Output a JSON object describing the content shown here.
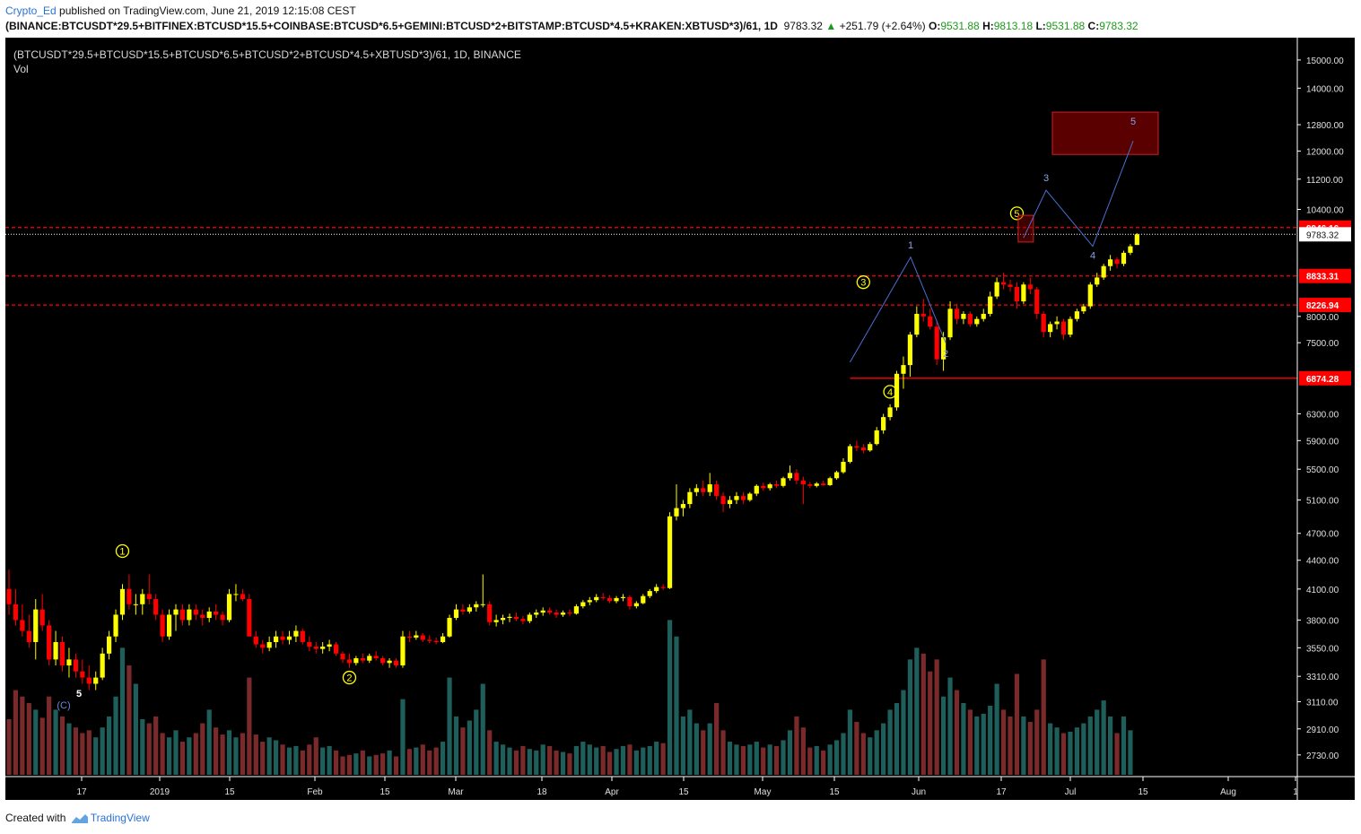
{
  "header": {
    "author": "Crypto_Ed",
    "published_text": "published on TradingView.com, June 21, 2019 12:15:08 CEST",
    "symbol": "(BINANCE:BTCUSDT*29.5+BITFINEX:BTCUSD*15.5+COINBASE:BTCUSD*6.5+GEMINI:BTCUSD*2+BITSTAMP:BTCUSD*4.5+KRAKEN:XBTUSD*3)/61, 1D",
    "last": "9783.32",
    "change": "+251.79 (+2.64%)",
    "o_label": "O:",
    "o_val": "9531.88",
    "h_label": "H:",
    "h_val": "9813.18",
    "l_label": "L:",
    "l_val": "9531.88",
    "c_label": "C:",
    "c_val": "9783.32"
  },
  "chart_legend": {
    "title": "(BTCUSDT*29.5+BTCUSD*15.5+BTCUSD*6.5+BTCUSD*2+BTCUSD*4.5+XBTUSD*3)/61, 1D, BINANCE",
    "vol": "Vol"
  },
  "footer": {
    "created_with": "Created with",
    "brand": "TradingView"
  },
  "colors": {
    "background": "#000000",
    "up": "#ffff00",
    "down": "#ff0000",
    "vol_up": "#1f5f5b",
    "vol_down": "#7a2a2a",
    "level_line": "#ff0000",
    "projection": "#4a6fd0",
    "wave_circle": "#ffff00",
    "target_box": "#5a0000"
  },
  "chart_data": {
    "type": "candlestick",
    "scale": "log",
    "ylim": [
      2600,
      15500
    ],
    "y_ticks": [
      "15000.00",
      "14000.00",
      "12800.00",
      "12000.00",
      "11200.00",
      "10400.00",
      "8000.00",
      "7500.00",
      "6300.00",
      "5900.00",
      "5500.00",
      "5100.00",
      "4700.00",
      "4400.00",
      "4100.00",
      "3800.00",
      "3550.00",
      "3310.00",
      "3110.00",
      "2910.00",
      "2730.00"
    ],
    "x_ticks": [
      "17",
      "2019",
      "15",
      "Feb",
      "15",
      "Mar",
      "18",
      "Apr",
      "15",
      "May",
      "15",
      "Jun",
      "17",
      "Jul",
      "15",
      "Aug",
      "1"
    ],
    "ohlc": [
      [
        4100,
        4300,
        3850,
        3950
      ],
      [
        3950,
        4100,
        3750,
        3800
      ],
      [
        3800,
        3950,
        3650,
        3700
      ],
      [
        3700,
        3850,
        3550,
        3600
      ],
      [
        3600,
        4000,
        3450,
        3900
      ],
      [
        3900,
        4050,
        3700,
        3750
      ],
      [
        3750,
        3800,
        3400,
        3450
      ],
      [
        3450,
        3700,
        3400,
        3600
      ],
      [
        3600,
        3650,
        3350,
        3400
      ],
      [
        3400,
        3550,
        3300,
        3450
      ],
      [
        3450,
        3500,
        3300,
        3350
      ],
      [
        3350,
        3450,
        3250,
        3300
      ],
      [
        3300,
        3400,
        3200,
        3250
      ],
      [
        3250,
        3350,
        3200,
        3300
      ],
      [
        3300,
        3550,
        3280,
        3500
      ],
      [
        3500,
        3700,
        3450,
        3650
      ],
      [
        3650,
        3900,
        3600,
        3850
      ],
      [
        3850,
        4150,
        3800,
        4100
      ],
      [
        4100,
        4250,
        3900,
        3950
      ],
      [
        3950,
        4050,
        3850,
        3950
      ],
      [
        3950,
        4100,
        3850,
        4050
      ],
      [
        4050,
        4250,
        3950,
        4000
      ],
      [
        4000,
        4050,
        3800,
        3850
      ],
      [
        3850,
        3900,
        3600,
        3650
      ],
      [
        3650,
        3900,
        3620,
        3850
      ],
      [
        3850,
        3950,
        3700,
        3900
      ],
      [
        3900,
        3950,
        3750,
        3800
      ],
      [
        3800,
        3950,
        3750,
        3900
      ],
      [
        3900,
        3950,
        3800,
        3850
      ],
      [
        3850,
        3900,
        3750,
        3820
      ],
      [
        3820,
        3920,
        3780,
        3880
      ],
      [
        3880,
        3950,
        3800,
        3850
      ],
      [
        3850,
        3880,
        3750,
        3800
      ],
      [
        3800,
        4100,
        3780,
        4050
      ],
      [
        4050,
        4150,
        3980,
        4050
      ],
      [
        4050,
        4100,
        3980,
        4000
      ],
      [
        4000,
        4050,
        3650,
        3650
      ],
      [
        3650,
        3700,
        3550,
        3580
      ],
      [
        3580,
        3620,
        3500,
        3550
      ],
      [
        3550,
        3650,
        3520,
        3600
      ],
      [
        3600,
        3700,
        3550,
        3650
      ],
      [
        3650,
        3700,
        3580,
        3620
      ],
      [
        3620,
        3700,
        3580,
        3650
      ],
      [
        3650,
        3750,
        3600,
        3700
      ],
      [
        3700,
        3720,
        3580,
        3600
      ],
      [
        3600,
        3650,
        3520,
        3560
      ],
      [
        3560,
        3600,
        3500,
        3540
      ],
      [
        3540,
        3600,
        3500,
        3560
      ],
      [
        3560,
        3620,
        3520,
        3580
      ],
      [
        3580,
        3600,
        3480,
        3500
      ],
      [
        3500,
        3520,
        3420,
        3450
      ],
      [
        3450,
        3500,
        3380,
        3420
      ],
      [
        3420,
        3480,
        3400,
        3460
      ],
      [
        3460,
        3500,
        3420,
        3440
      ],
      [
        3440,
        3500,
        3420,
        3480
      ],
      [
        3480,
        3520,
        3440,
        3460
      ],
      [
        3460,
        3480,
        3400,
        3420
      ],
      [
        3420,
        3460,
        3380,
        3440
      ],
      [
        3440,
        3460,
        3380,
        3400
      ],
      [
        3400,
        3700,
        3380,
        3650
      ],
      [
        3650,
        3700,
        3600,
        3640
      ],
      [
        3640,
        3700,
        3620,
        3660
      ],
      [
        3660,
        3680,
        3600,
        3620
      ],
      [
        3620,
        3660,
        3590,
        3610
      ],
      [
        3610,
        3640,
        3580,
        3600
      ],
      [
        3600,
        3680,
        3590,
        3650
      ],
      [
        3650,
        3850,
        3640,
        3820
      ],
      [
        3820,
        3950,
        3800,
        3900
      ],
      [
        3900,
        3950,
        3850,
        3880
      ],
      [
        3880,
        3950,
        3860,
        3920
      ],
      [
        3920,
        3980,
        3880,
        3950
      ],
      [
        3950,
        4250,
        3920,
        3950
      ],
      [
        3950,
        3980,
        3750,
        3780
      ],
      [
        3780,
        3850,
        3740,
        3800
      ],
      [
        3800,
        3850,
        3760,
        3820
      ],
      [
        3820,
        3860,
        3780,
        3830
      ],
      [
        3830,
        3870,
        3790,
        3810
      ],
      [
        3810,
        3840,
        3760,
        3790
      ],
      [
        3790,
        3870,
        3770,
        3850
      ],
      [
        3850,
        3900,
        3820,
        3870
      ],
      [
        3870,
        3920,
        3840,
        3890
      ],
      [
        3890,
        3920,
        3850,
        3870
      ],
      [
        3870,
        3900,
        3820,
        3850
      ],
      [
        3850,
        3890,
        3830,
        3870
      ],
      [
        3870,
        3900,
        3840,
        3860
      ],
      [
        3860,
        3950,
        3850,
        3930
      ],
      [
        3930,
        3990,
        3910,
        3970
      ],
      [
        3970,
        4020,
        3940,
        3990
      ],
      [
        3990,
        4050,
        3970,
        4020
      ],
      [
        4020,
        4060,
        3990,
        4010
      ],
      [
        4010,
        4040,
        3960,
        3980
      ],
      [
        3980,
        4030,
        3960,
        4010
      ],
      [
        4010,
        4050,
        3980,
        4020
      ],
      [
        4020,
        4040,
        3900,
        3930
      ],
      [
        3930,
        3980,
        3910,
        3960
      ],
      [
        3960,
        4050,
        3950,
        4030
      ],
      [
        4030,
        4100,
        4010,
        4080
      ],
      [
        4080,
        4150,
        4060,
        4120
      ],
      [
        4120,
        4150,
        4090,
        4110
      ],
      [
        4110,
        4950,
        4100,
        4900
      ],
      [
        4900,
        5300,
        4850,
        5000
      ],
      [
        5000,
        5100,
        4900,
        5050
      ],
      [
        5050,
        5250,
        5000,
        5200
      ],
      [
        5200,
        5300,
        5150,
        5250
      ],
      [
        5250,
        5350,
        5150,
        5200
      ],
      [
        5200,
        5450,
        5150,
        5300
      ],
      [
        5300,
        5350,
        5100,
        5150
      ],
      [
        5150,
        5200,
        4950,
        5050
      ],
      [
        5050,
        5150,
        5000,
        5100
      ],
      [
        5100,
        5200,
        5050,
        5150
      ],
      [
        5150,
        5200,
        5050,
        5100
      ],
      [
        5100,
        5200,
        5080,
        5180
      ],
      [
        5180,
        5300,
        5150,
        5280
      ],
      [
        5280,
        5320,
        5220,
        5250
      ],
      [
        5250,
        5320,
        5220,
        5300
      ],
      [
        5300,
        5350,
        5250,
        5280
      ],
      [
        5280,
        5400,
        5260,
        5380
      ],
      [
        5380,
        5550,
        5350,
        5450
      ],
      [
        5450,
        5500,
        5300,
        5350
      ],
      [
        5350,
        5400,
        5050,
        5300
      ],
      [
        5300,
        5330,
        5250,
        5280
      ],
      [
        5280,
        5330,
        5260,
        5310
      ],
      [
        5310,
        5350,
        5280,
        5290
      ],
      [
        5290,
        5400,
        5280,
        5380
      ],
      [
        5380,
        5480,
        5360,
        5460
      ],
      [
        5460,
        5650,
        5440,
        5600
      ],
      [
        5600,
        5850,
        5580,
        5820
      ],
      [
        5820,
        5900,
        5750,
        5800
      ],
      [
        5800,
        5850,
        5720,
        5760
      ],
      [
        5760,
        5880,
        5740,
        5850
      ],
      [
        5850,
        6100,
        5830,
        6050
      ],
      [
        6050,
        6300,
        6000,
        6250
      ],
      [
        6250,
        6450,
        6200,
        6400
      ],
      [
        6400,
        7000,
        6350,
        6950
      ],
      [
        6950,
        7250,
        6700,
        7100
      ],
      [
        7100,
        7700,
        6900,
        7650
      ],
      [
        7650,
        8200,
        7600,
        8050
      ],
      [
        8050,
        8350,
        7900,
        8000
      ],
      [
        8000,
        8150,
        7750,
        7800
      ],
      [
        7800,
        7900,
        7100,
        7200
      ],
      [
        7200,
        7700,
        7000,
        7600
      ],
      [
        7600,
        8300,
        7550,
        8150
      ],
      [
        8150,
        8250,
        7850,
        7950
      ],
      [
        7950,
        8100,
        7850,
        8050
      ],
      [
        8050,
        8100,
        7800,
        7850
      ],
      [
        7850,
        8000,
        7800,
        7950
      ],
      [
        7950,
        8150,
        7900,
        8050
      ],
      [
        8050,
        8500,
        8000,
        8400
      ],
      [
        8400,
        8800,
        8350,
        8700
      ],
      [
        8700,
        8900,
        8550,
        8650
      ],
      [
        8650,
        8750,
        8500,
        8600
      ],
      [
        8600,
        8700,
        8150,
        8300
      ],
      [
        8300,
        8700,
        8250,
        8650
      ],
      [
        8650,
        8800,
        8450,
        8550
      ],
      [
        8550,
        8600,
        7950,
        8050
      ],
      [
        8050,
        8100,
        7600,
        7700
      ],
      [
        7700,
        7900,
        7600,
        7850
      ],
      [
        7850,
        8000,
        7750,
        7900
      ],
      [
        7900,
        7950,
        7550,
        7650
      ],
      [
        7650,
        8000,
        7600,
        7950
      ],
      [
        7950,
        8150,
        7900,
        8100
      ],
      [
        8100,
        8250,
        8050,
        8200
      ],
      [
        8200,
        8700,
        8150,
        8650
      ],
      [
        8650,
        8900,
        8600,
        8800
      ],
      [
        8800,
        9100,
        8750,
        9050
      ],
      [
        9050,
        9300,
        8950,
        9200
      ],
      [
        9200,
        9250,
        9000,
        9100
      ],
      [
        9100,
        9400,
        9050,
        9350
      ],
      [
        9350,
        9550,
        9300,
        9500
      ],
      [
        9531.88,
        9813.18,
        9531.88,
        9783.32
      ]
    ],
    "volume": [
      2980,
      3200,
      3150,
      3100,
      3050,
      2990,
      3150,
      3050,
      3000,
      2950,
      2920,
      2880,
      2900,
      2850,
      2920,
      3000,
      3150,
      3550,
      3400,
      3250,
      2980,
      2950,
      3000,
      2880,
      2850,
      2900,
      2820,
      2850,
      2880,
      2950,
      3050,
      2920,
      2870,
      2900,
      2850,
      2880,
      3300,
      2870,
      2820,
      2850,
      2830,
      2800,
      2780,
      2790,
      2760,
      2800,
      2850,
      2780,
      2790,
      2760,
      2720,
      2730,
      2740,
      2760,
      2720,
      2730,
      2740,
      2760,
      2720,
      3130,
      2770,
      2780,
      2800,
      2760,
      2780,
      2820,
      3300,
      3000,
      2920,
      2970,
      3050,
      3250,
      2900,
      2820,
      2800,
      2780,
      2760,
      2790,
      2770,
      2760,
      2800,
      2790,
      2760,
      2750,
      2740,
      2790,
      2820,
      2800,
      2780,
      2790,
      2750,
      2770,
      2790,
      2800,
      2760,
      2780,
      2790,
      2820,
      2810,
      3800,
      3650,
      3000,
      3050,
      2950,
      2900,
      2950,
      3100,
      2900,
      2820,
      2800,
      2790,
      2800,
      2820,
      2780,
      2800,
      2790,
      2830,
      2900,
      3000,
      2920,
      2780,
      2790,
      2760,
      2800,
      2830,
      2880,
      3050,
      2960,
      2880,
      2850,
      2900,
      2950,
      3050,
      3100,
      3200,
      3450,
      3550,
      3500,
      3350,
      3450,
      3150,
      3300,
      3200,
      3100,
      3050,
      3000,
      3020,
      3080,
      3250,
      3050,
      3000,
      3330,
      3000,
      2960,
      3050,
      3450,
      2950,
      2920,
      2880,
      2890,
      2920,
      2950,
      3000,
      3050,
      3120,
      3000,
      2880,
      3000,
      2900
    ],
    "levels": [
      {
        "price": 9946.16,
        "label": "9946.16",
        "style": "dashed"
      },
      {
        "price": 8833.31,
        "label": "8833.31",
        "style": "dashed"
      },
      {
        "price": 8226.94,
        "label": "8226.94",
        "style": "dashed"
      },
      {
        "price": 6874.28,
        "label": "6874.28",
        "style": "solid"
      }
    ],
    "last_price": {
      "price": 9783.32,
      "label": "9783.32"
    },
    "wave_labels_circled": [
      {
        "label": "1",
        "price": 4500
      },
      {
        "label": "2",
        "price": 3300
      },
      {
        "label": "3",
        "price": 8700
      },
      {
        "label": "4",
        "price": 6650
      },
      {
        "label": "5",
        "price": 10300
      }
    ],
    "wave_labels_plain": [
      "5",
      "(C)"
    ],
    "projection_labels": [
      "1",
      "2",
      "3",
      "4",
      "5"
    ],
    "projection_prices": [
      7150,
      9250,
      7500,
      10900,
      9500,
      12300
    ]
  }
}
